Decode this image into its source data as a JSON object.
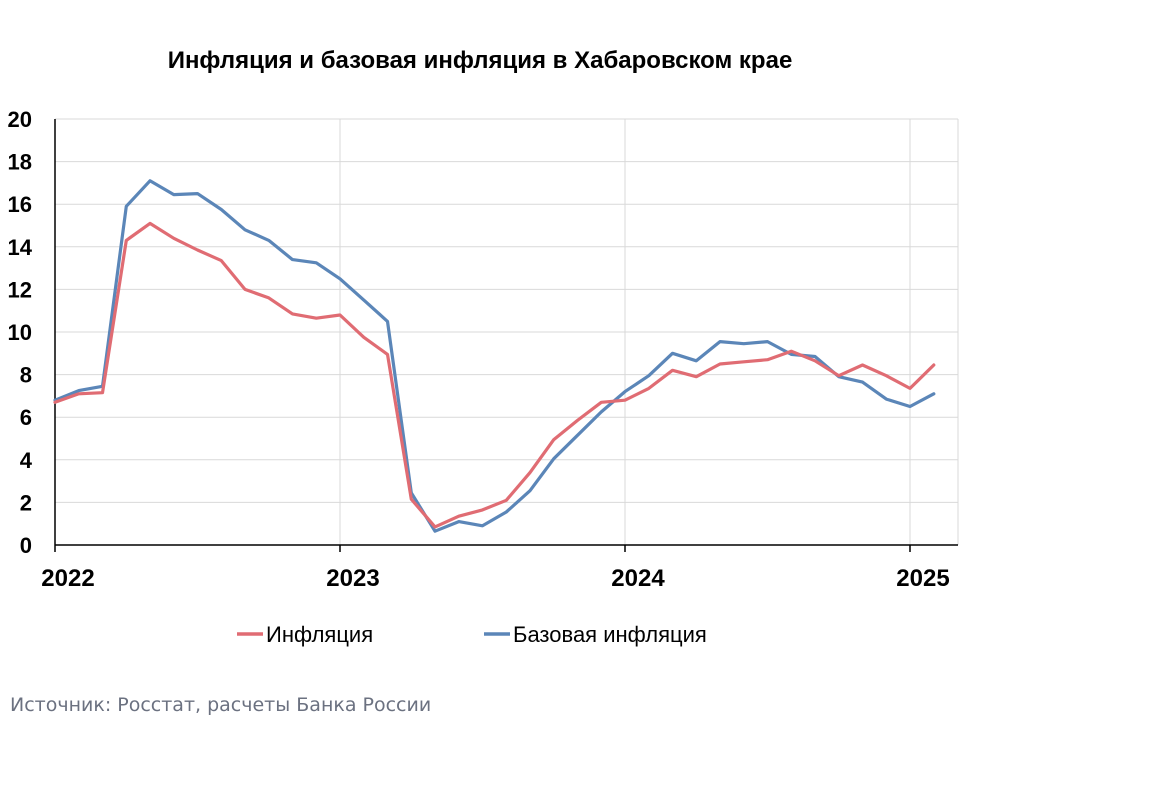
{
  "chart_data": {
    "type": "line",
    "title": "Инфляция и базовая инфляция в Хабаровском крае",
    "source": "Источник: Росстат, расчеты Банка России",
    "y_ticks": [
      "0",
      "2",
      "4",
      "6",
      "8",
      "10",
      "12",
      "14",
      "16",
      "18",
      "20"
    ],
    "ylim": [
      0,
      20
    ],
    "x_ticks": [
      {
        "label": "2022",
        "x": 0
      },
      {
        "label": "2023",
        "x": 12
      },
      {
        "label": "2024",
        "x": 24
      },
      {
        "label": "2025",
        "x": 36
      }
    ],
    "x_unit": "months since Jan 2022",
    "grid": true,
    "legend_position": "bottom",
    "series": [
      {
        "name": "Инфляция",
        "color": "#e06c73",
        "values": [
          6.7,
          7.1,
          7.15,
          14.3,
          15.1,
          14.4,
          13.85,
          13.35,
          12.0,
          11.6,
          10.85,
          10.65,
          10.8,
          9.75,
          8.95,
          2.15,
          0.85,
          1.35,
          1.65,
          2.1,
          3.4,
          4.95,
          5.85,
          6.7,
          6.8,
          7.35,
          8.2,
          7.9,
          8.5,
          8.6,
          8.7,
          9.1,
          8.65,
          7.95,
          8.45,
          7.95,
          7.35,
          8.45
        ]
      },
      {
        "name": "Базовая инфляция",
        "color": "#5b86b8",
        "values": [
          6.8,
          7.25,
          7.45,
          15.9,
          17.1,
          16.45,
          16.5,
          15.75,
          14.8,
          14.3,
          13.4,
          13.25,
          12.5,
          11.5,
          10.5,
          2.45,
          0.65,
          1.1,
          0.9,
          1.55,
          2.55,
          4.05,
          5.15,
          6.25,
          7.2,
          7.95,
          9.0,
          8.65,
          9.55,
          9.45,
          9.55,
          8.95,
          8.85,
          7.9,
          7.65,
          6.85,
          6.5,
          7.1
        ]
      }
    ]
  }
}
